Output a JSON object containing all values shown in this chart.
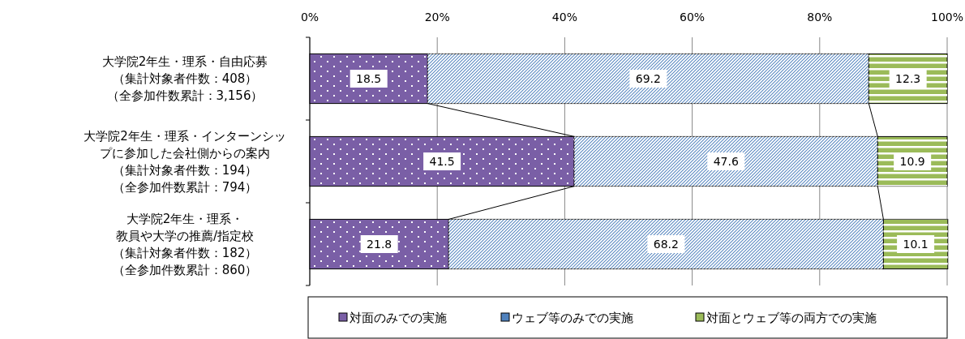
{
  "chart_data": {
    "type": "bar",
    "orientation": "horizontal",
    "stacked": true,
    "categories": [
      "大学院2年生・理系・自由応募（集計対象者件数：408）（全参加件数累計：3,156）",
      "大学院2年生・理系・インターンシップに参加した会社側からの案内（集計対象者件数：194）（全参加件数累計：794）",
      "大学院2年生・理系・教員や大学の推薦/指定校（集計対象者件数：182）（全参加件数累計：860）"
    ],
    "series": [
      {
        "name": "対面のみでの実施",
        "color": "#7a5fa6",
        "values": [
          18.5,
          41.5,
          21.8
        ]
      },
      {
        "name": "ウェブ等のみでの実施",
        "color": "#4f81bd",
        "values": [
          69.2,
          47.6,
          68.2
        ]
      },
      {
        "name": "対面とウェブ等の両方での実施",
        "color": "#9bbb59",
        "values": [
          12.3,
          10.9,
          10.1
        ]
      }
    ],
    "xlim": [
      0,
      100
    ],
    "xticks": [
      {
        "value": 0,
        "label": "0%"
      },
      {
        "value": 20,
        "label": "20%"
      },
      {
        "value": 40,
        "label": "40%"
      },
      {
        "value": 60,
        "label": "60%"
      },
      {
        "value": 80,
        "label": "80%"
      },
      {
        "value": 100,
        "label": "100%"
      }
    ],
    "grid": "x",
    "legend": "bottom",
    "data_labels": true
  }
}
